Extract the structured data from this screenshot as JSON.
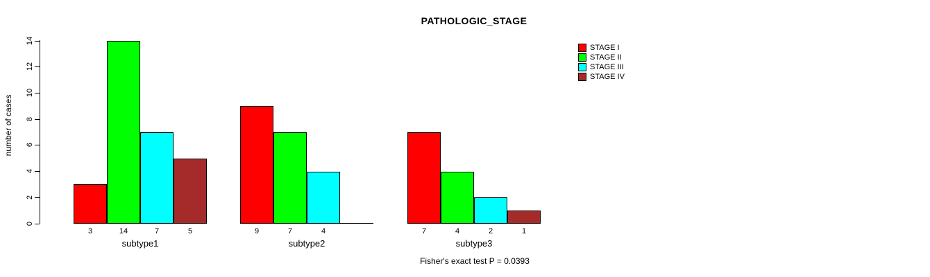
{
  "page": {
    "background_color": "#ffffff",
    "text_color": "#000000"
  },
  "chart_data": {
    "type": "bar",
    "title": "PATHOLOGIC_STAGE",
    "xlabel": "",
    "ylabel": "number of cases",
    "ylim": [
      0,
      14
    ],
    "yticks": [
      0,
      2,
      4,
      6,
      8,
      10,
      12,
      14
    ],
    "grid": false,
    "legend_position": "top-right",
    "categories": [
      "subtype1",
      "subtype2",
      "subtype3"
    ],
    "series": [
      {
        "name": "STAGE I",
        "color": "#FF0000",
        "values": [
          3,
          9,
          7
        ]
      },
      {
        "name": "STAGE II",
        "color": "#00FF00",
        "values": [
          14,
          7,
          4
        ]
      },
      {
        "name": "STAGE III",
        "color": "#00FFFF",
        "values": [
          7,
          4,
          2
        ]
      },
      {
        "name": "STAGE IV",
        "color": "#A52A2A",
        "values": [
          5,
          0,
          1
        ]
      }
    ],
    "bar_border_color": "#000000",
    "show_value_labels_under_bars": true,
    "zero_value_bars_drawn_as_baseline_without_label": true,
    "annotation": "Fisher's exact test P = 0.0393"
  }
}
